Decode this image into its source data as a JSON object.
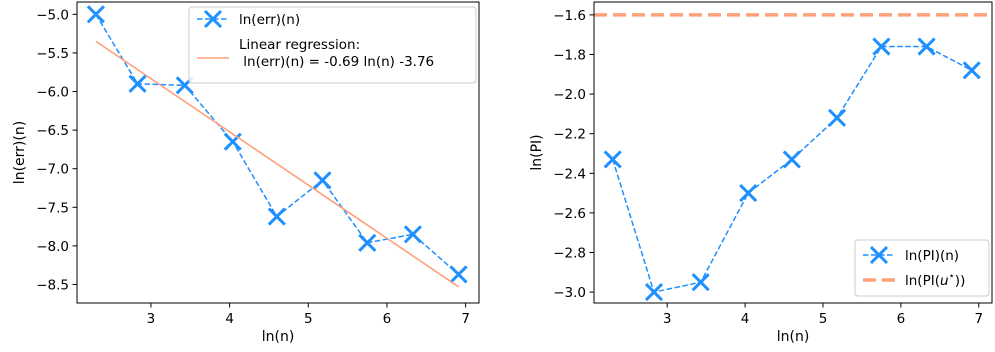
{
  "chart_data": [
    {
      "type": "line",
      "xlabel": "ln(n)",
      "ylabel": "ln(err)(n)",
      "xlim": [
        2.06,
        7.17
      ],
      "ylim": [
        -8.74,
        -4.84
      ],
      "xticks": [
        3,
        4,
        5,
        6,
        7
      ],
      "xtick_labels": [
        "3",
        "4",
        "5",
        "6",
        "7"
      ],
      "yticks": [
        -5.0,
        -5.5,
        -6.0,
        -6.5,
        -7.0,
        -7.5,
        -8.0,
        -8.5
      ],
      "ytick_labels": [
        "−5.0",
        "−5.5",
        "−6.0",
        "−6.5",
        "−7.0",
        "−7.5",
        "−8.0",
        "−8.5"
      ],
      "grid": false,
      "legend_position": "top-right",
      "series": [
        {
          "name": "ln(err)(n)",
          "style": "dashed-x",
          "color": "#1e90ff",
          "x": [
            2.3,
            2.83,
            3.43,
            4.04,
            4.6,
            5.18,
            5.75,
            6.33,
            6.91
          ],
          "y": [
            -5.0,
            -5.9,
            -5.92,
            -6.65,
            -7.62,
            -7.15,
            -7.96,
            -7.85,
            -8.37
          ]
        },
        {
          "name": "Linear regression:",
          "name_line2": " ln(err)(n) = -0.69 ln(n) -3.76",
          "style": "solid",
          "color": "#ffa07a",
          "x": [
            2.3,
            6.91
          ],
          "y": [
            -5.35,
            -8.53
          ]
        }
      ]
    },
    {
      "type": "line",
      "xlabel": "ln(n)",
      "ylabel": "ln(PI)",
      "xlim": [
        2.06,
        7.17
      ],
      "ylim": [
        -3.055,
        -1.535
      ],
      "xticks": [
        3,
        4,
        5,
        6,
        7
      ],
      "xtick_labels": [
        "3",
        "4",
        "5",
        "6",
        "7"
      ],
      "yticks": [
        -1.6,
        -1.8,
        -2.0,
        -2.2,
        -2.4,
        -2.6,
        -2.8,
        -3.0
      ],
      "ytick_labels": [
        "−1.6",
        "−1.8",
        "−2.0",
        "−2.2",
        "−2.4",
        "−2.6",
        "−2.8",
        "−3.0"
      ],
      "grid": false,
      "legend_position": "bottom-right",
      "series": [
        {
          "name": "ln(PI)(n)",
          "style": "dashed-x",
          "color": "#1e90ff",
          "x": [
            2.3,
            2.83,
            3.43,
            4.04,
            4.6,
            5.18,
            5.75,
            6.33,
            6.91
          ],
          "y": [
            -2.33,
            -3.0,
            -2.95,
            -2.5,
            -2.33,
            -2.12,
            -1.76,
            -1.76,
            -1.88
          ]
        },
        {
          "name": "ln(PI(u⋆))",
          "name_parts": [
            "ln(PI(",
            "u",
            "⋆",
            "))"
          ],
          "style": "thick-dashed-hline",
          "color": "#ffa07a",
          "y_const": -1.6
        }
      ]
    }
  ]
}
